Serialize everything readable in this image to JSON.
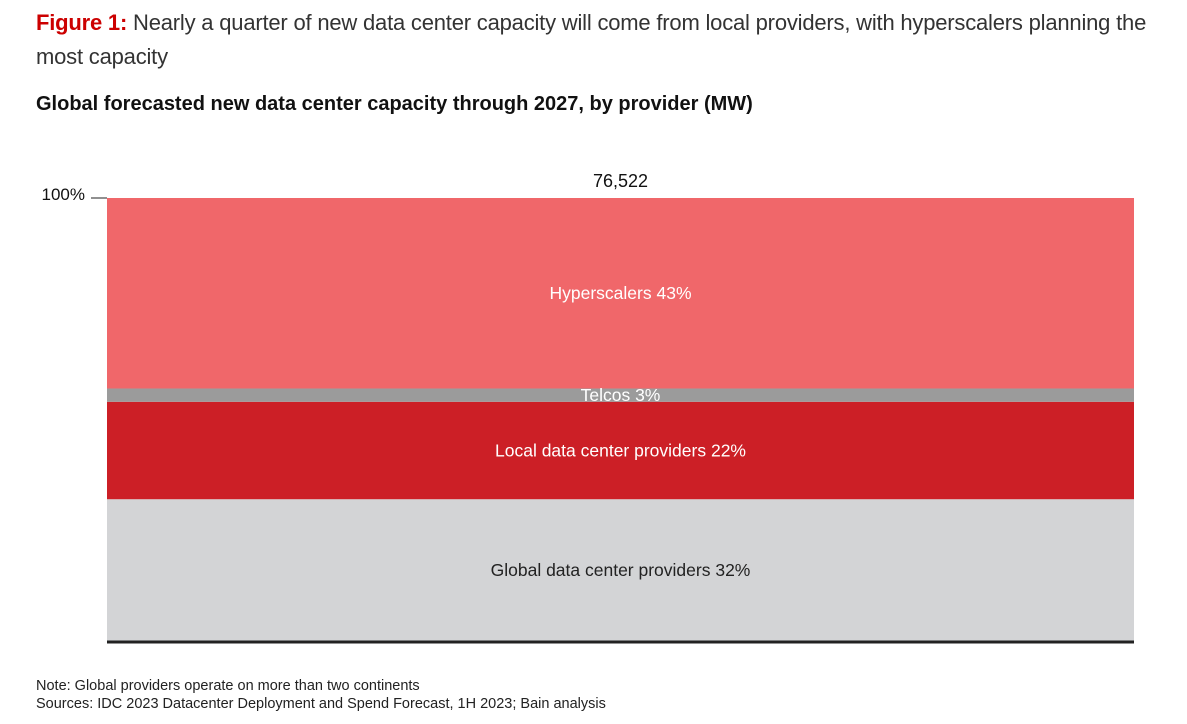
{
  "figure": {
    "label": "Figure 1:",
    "title": " Nearly a quarter of new data center capacity will come from local providers, with hyperscalers planning the most capacity"
  },
  "subtitle": "Global forecasted new data center capacity through 2027, by provider (MW)",
  "notes": {
    "note": "Note: Global providers operate on more than two continents",
    "sources": "Sources: IDC 2023 Datacenter Deployment and Spend Forecast, 1H 2023; Bain analysis"
  },
  "chart_data": {
    "type": "bar",
    "stacked": true,
    "normalized": true,
    "title": "Global forecasted new data center capacity through 2027, by provider (MW)",
    "xlabel": "",
    "ylabel": "",
    "ylim": [
      0,
      100
    ],
    "y_ticks": [
      {
        "value": 100,
        "label": "100%"
      }
    ],
    "total_label": "76,522",
    "total": 76522,
    "grid": false,
    "legend": "none (inline labels)",
    "series": [
      {
        "name": "Global data center providers",
        "value": 32,
        "label": "Global data center providers 32%",
        "color": "#d3d4d6",
        "text_color": "#222222"
      },
      {
        "name": "Local data center providers",
        "value": 22,
        "label": "Local data center providers 22%",
        "color": "#cc1f26",
        "text_color": "#ffffff"
      },
      {
        "name": "Telcos",
        "value": 3,
        "label": "Telcos 3%",
        "color": "#9b9b9b",
        "text_color": "#ffffff"
      },
      {
        "name": "Hyperscalers",
        "value": 43,
        "label": "Hyperscalers 43%",
        "color": "#f0676a",
        "text_color": "#ffffff"
      }
    ]
  }
}
